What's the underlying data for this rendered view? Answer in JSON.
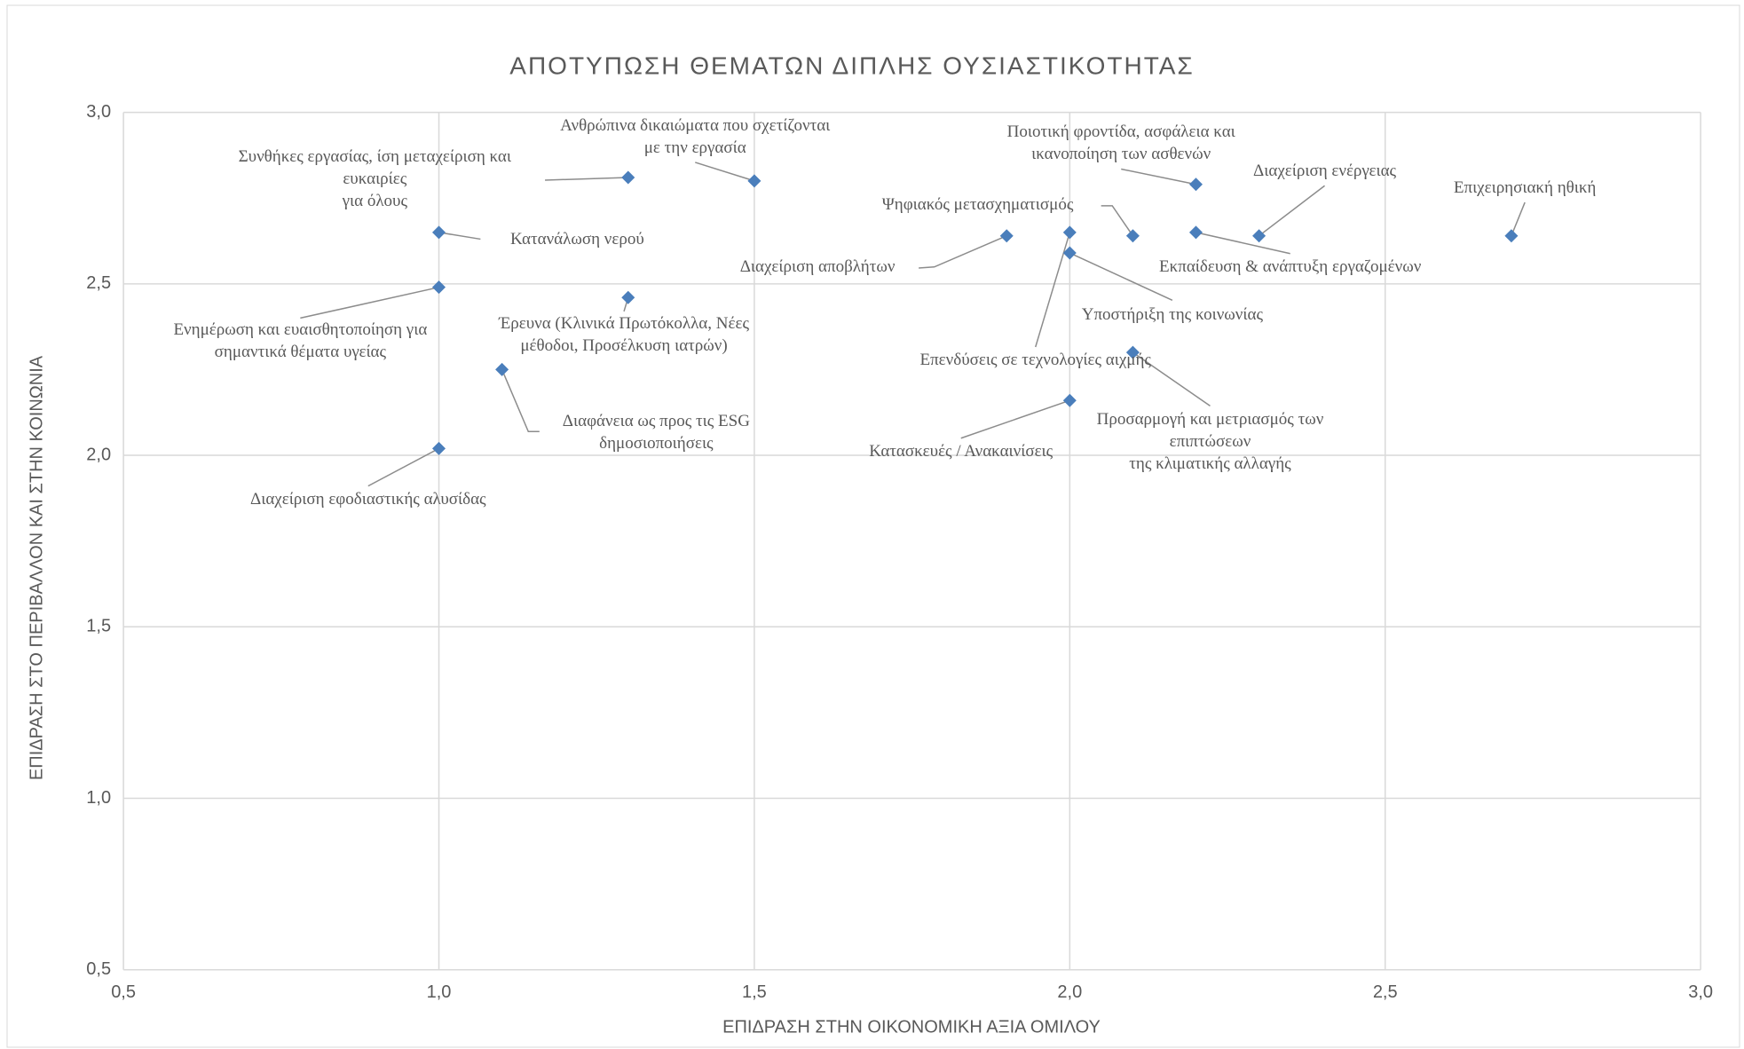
{
  "chart_data": {
    "type": "scatter",
    "title": "ΑΠΟΤΥΠΩΣΗ ΘΕΜΑΤΩΝ ΔΙΠΛΗΣ ΟΥΣΙΑΣΤΙΚΟΤΗΤΑΣ",
    "xlabel": "ΕΠΙΔΡΑΣΗ ΣΤΗΝ ΟΙΚΟΝΟΜΙΚΗ ΑΞΙΑ ΟΜΙΛΟΥ",
    "ylabel": "ΕΠΙΔΡΑΣΗ ΣΤΟ ΠΕΡΙΒΑΛΛΟΝ ΚΑΙ ΣΤΗΝ ΚΟΙΝΩΝΙΑ",
    "color": "#4a7ebb",
    "grid": true,
    "xlim": [
      0.5,
      3.0
    ],
    "ylim": [
      0.5,
      3.0
    ],
    "xticks": [
      {
        "value": 0.5,
        "label": "0,5"
      },
      {
        "value": 1.0,
        "label": "1,0"
      },
      {
        "value": 1.5,
        "label": "1,5"
      },
      {
        "value": 2.0,
        "label": "2,0"
      },
      {
        "value": 2.5,
        "label": "2,5"
      },
      {
        "value": 3.0,
        "label": "3,0"
      }
    ],
    "yticks": [
      {
        "value": 0.5,
        "label": "0,5"
      },
      {
        "value": 1.0,
        "label": "1,0"
      },
      {
        "value": 1.5,
        "label": "1,5"
      },
      {
        "value": 2.0,
        "label": "2,0"
      },
      {
        "value": 2.5,
        "label": "2,5"
      },
      {
        "value": 3.0,
        "label": "3,0"
      }
    ],
    "labels": [
      "Συνθήκες εργασίας, ίση μεταχείριση και\nευκαιρίες\nγια όλους",
      "Ανθρώπινα δικαιώματα που σχετίζονται\nμε την εργασία",
      "Κατανάλωση νερού",
      "Ενημέρωση και ευαισθητοποίηση για\nσημαντικά θέματα υγείας",
      "Έρευνα (Κλινικά Πρωτόκολλα, Νέες\nμέθοδοι, Προσέλκυση ιατρών)",
      "Διαφάνεια ως προς τις ESG\nδημοσιοποιήσεις",
      "Διαχείριση εφοδιαστικής αλυσίδας",
      "Διαχείριση αποβλήτων",
      "Ψηφιακός μετασχηματισμός",
      "Επενδύσεις σε τεχνολογίες αιχμής",
      "Υποστήριξη της κοινωνίας",
      "Ποιοτική φροντίδα, ασφάλεια και\nικανοποίηση των ασθενών",
      "Διαχείριση ενέργειας",
      "Εκπαίδευση & ανάπτυξη εργαζομένων",
      "Επιχειρησιακή ηθική",
      "Κατασκευές / Ανακαινίσεις",
      "Προσαρμογή και μετριασμός των\nεπιπτώσεων\nτης κλιματικής αλλαγής"
    ],
    "x": [
      1.3,
      1.5,
      1.0,
      1.0,
      1.3,
      1.1,
      1.0,
      1.9,
      2.1,
      2.0,
      2.0,
      2.2,
      2.3,
      2.2,
      2.7,
      2.0,
      2.1
    ],
    "values": [
      2.81,
      2.8,
      2.65,
      2.49,
      2.46,
      2.25,
      2.02,
      2.64,
      2.64,
      2.65,
      2.59,
      2.79,
      2.64,
      2.65,
      2.64,
      2.16,
      2.3
    ]
  }
}
